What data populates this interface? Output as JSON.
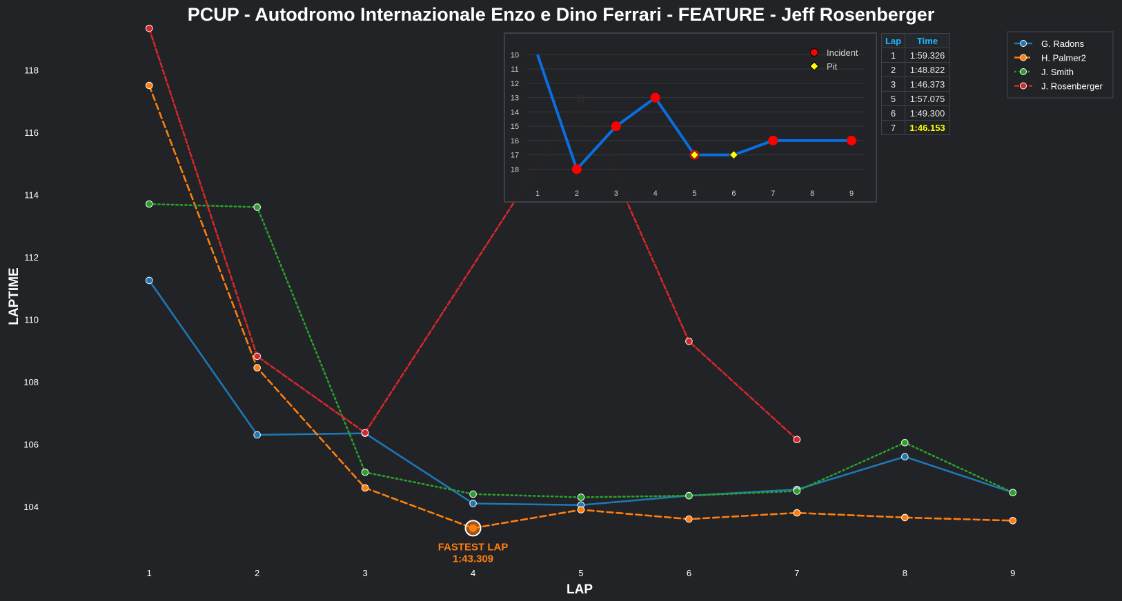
{
  "colors": {
    "background": "#212327",
    "text": "#ffffff",
    "G. Radons": "#1f77b4",
    "H. Palmer2": "#ff7f0e",
    "J. Smith": "#2ca02c",
    "J. Rosenberger": "#d62728",
    "position_line": "#0a6ee0",
    "incident": "#ff0000",
    "pit": "#ffff00",
    "table_header": "#1fb6ff",
    "best_time": "#ffff00"
  },
  "chart_data": [
    {
      "type": "line",
      "title": "PCUP - Autodromo Internazionale Enzo e Dino Ferrari - FEATURE - Jeff Rosenberger",
      "xlabel": "LAP",
      "ylabel": "LAPTIME",
      "x": [
        1,
        2,
        3,
        4,
        5,
        6,
        7,
        8,
        9
      ],
      "xlim": [
        0.5,
        9.5
      ],
      "ylim": [
        102.3,
        119.4
      ],
      "yticks": [
        104,
        106,
        108,
        110,
        112,
        114,
        116,
        118
      ],
      "grid": false,
      "legend": "top-right",
      "series": [
        {
          "name": "G. Radons",
          "style": "solid",
          "x": [
            1,
            2,
            3,
            4,
            5,
            6,
            7,
            8,
            9
          ],
          "values": [
            111.25,
            106.3,
            106.35,
            104.1,
            104.05,
            104.35,
            104.55,
            105.6,
            104.45
          ]
        },
        {
          "name": "H. Palmer2",
          "style": "dashed",
          "x": [
            1,
            2,
            3,
            4,
            5,
            6,
            7,
            8,
            9
          ],
          "values": [
            117.5,
            108.45,
            104.6,
            103.309,
            103.9,
            103.6,
            103.8,
            103.65,
            103.55
          ]
        },
        {
          "name": "J. Smith",
          "style": "dotted",
          "x": [
            1,
            2,
            3,
            4,
            5,
            6,
            7,
            8,
            9
          ],
          "values": [
            113.7,
            113.6,
            105.1,
            104.4,
            104.3,
            104.35,
            104.5,
            106.05,
            104.45
          ]
        },
        {
          "name": "J. Rosenberger",
          "style": "dashdot",
          "x": [
            1,
            2,
            3,
            5,
            6,
            7
          ],
          "values": [
            119.33,
            108.82,
            106.37,
            117.08,
            109.3,
            106.15
          ]
        }
      ],
      "annotation": {
        "label": "FASTEST LAP",
        "time": "1:43.309",
        "x": 4,
        "y": 103.309
      }
    },
    {
      "type": "line",
      "inset": "position",
      "x": [
        1,
        2,
        3,
        4,
        5,
        6,
        7,
        8,
        9
      ],
      "values": [
        10,
        18,
        15,
        13,
        17,
        17,
        16,
        16,
        16
      ],
      "ylim": [
        18.7,
        9.5
      ],
      "yticks": [
        10,
        11,
        12,
        13,
        14,
        15,
        16,
        17,
        18
      ],
      "xticks": [
        1,
        2,
        3,
        4,
        5,
        6,
        7,
        8,
        9
      ],
      "incidents": [
        2,
        3,
        4,
        5,
        7,
        9
      ],
      "pits": [
        5,
        6
      ],
      "legend": {
        "incident": "Incident",
        "pit": "Pit"
      }
    },
    {
      "type": "table",
      "columns": [
        "Lap",
        "Time"
      ],
      "rows": [
        {
          "lap": "1",
          "time": "1:59.326"
        },
        {
          "lap": "2",
          "time": "1:48.822"
        },
        {
          "lap": "3",
          "time": "1:46.373"
        },
        {
          "lap": "5",
          "time": "1:57.075"
        },
        {
          "lap": "6",
          "time": "1:49.300"
        },
        {
          "lap": "7",
          "time": "1:46.153",
          "best": true
        }
      ]
    }
  ]
}
